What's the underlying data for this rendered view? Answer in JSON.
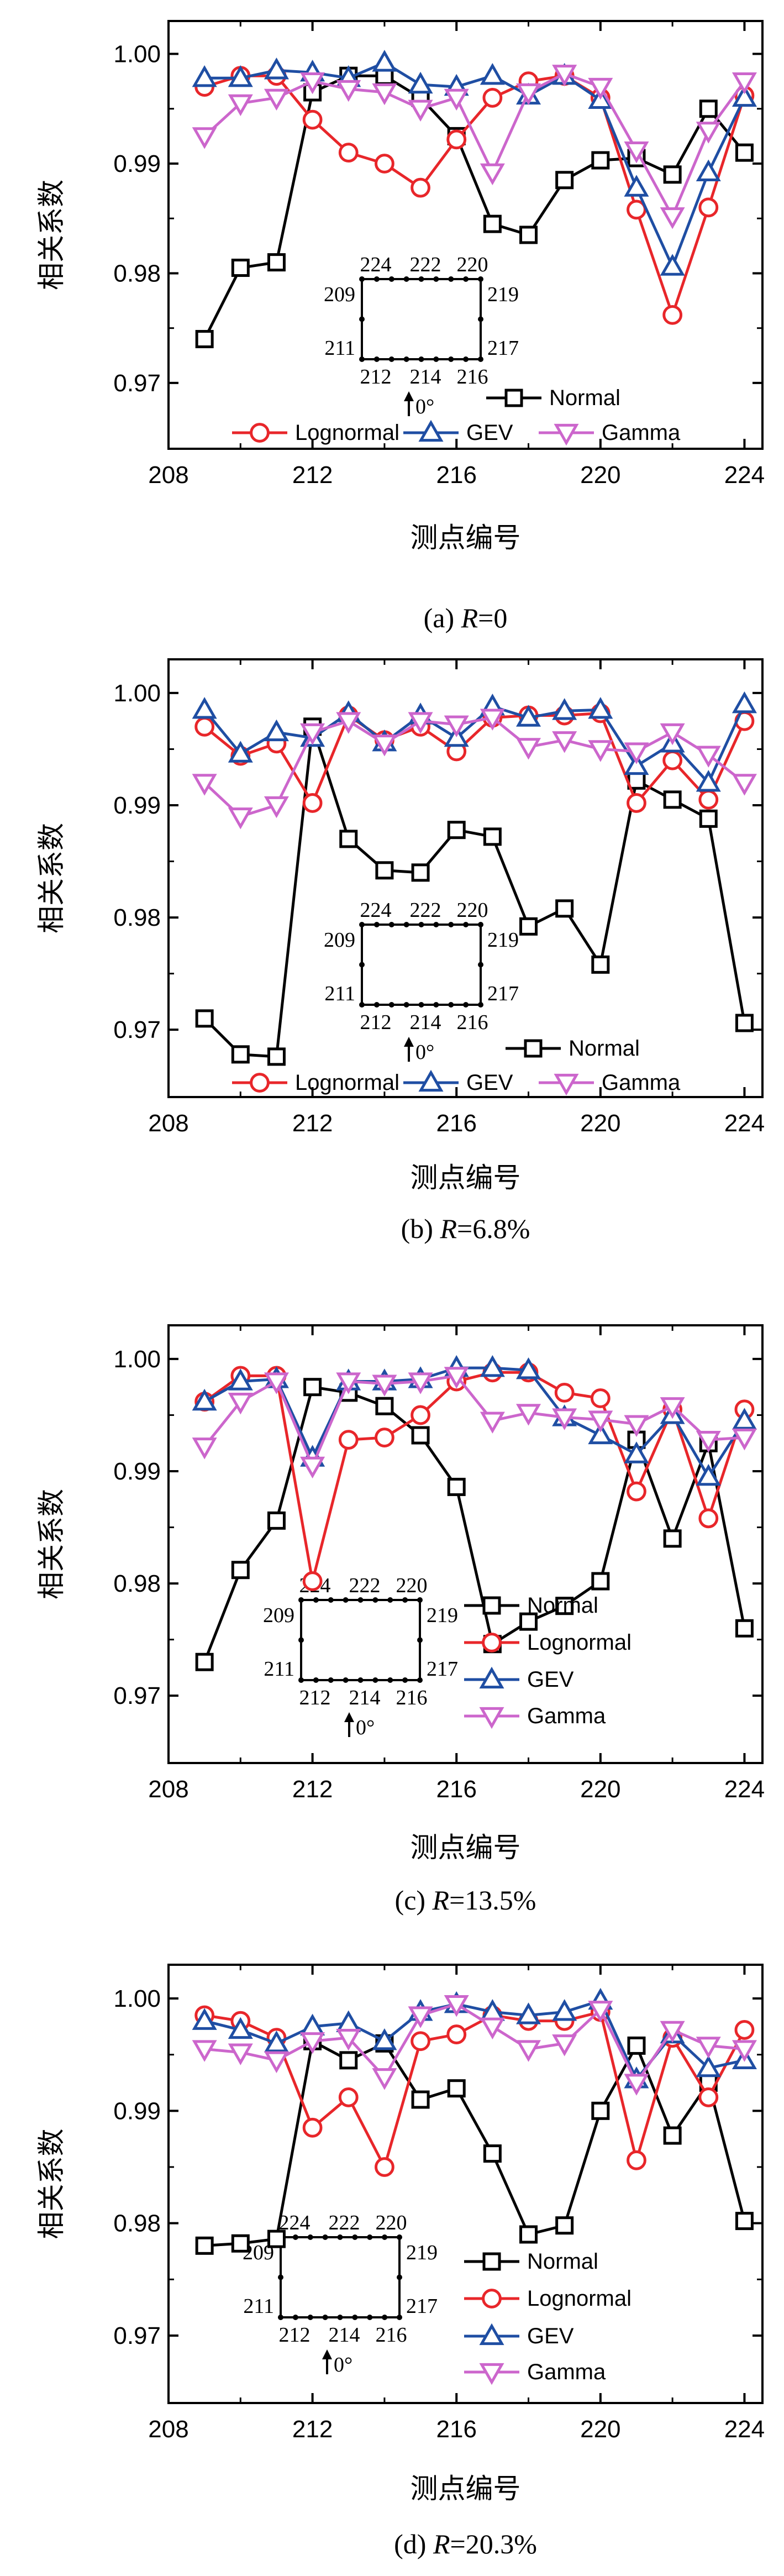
{
  "colors": {
    "Normal": "#000000",
    "Lognormal": "#e8262a",
    "GEV": "#1f4ea3",
    "Gamma": "#cc66cc"
  },
  "inset": {
    "top_labels": [
      "224",
      "222",
      "220"
    ],
    "left_top": "209",
    "left_bottom": "211",
    "right_top": "219",
    "right_bottom": "217",
    "bottom_labels": [
      "212",
      "214",
      "216"
    ],
    "angle": "0°"
  },
  "chart_data": [
    {
      "type": "line",
      "caption": "(a) R=0",
      "caption_prefix": "(a) ",
      "caption_var": "R",
      "caption_value": "=0",
      "xlabel": "测点编号",
      "ylabel": "相关系数",
      "xlim": [
        208,
        224.5
      ],
      "ylim": [
        0.964,
        1.003
      ],
      "x_ticks": [
        "208",
        "212",
        "216",
        "220",
        "224"
      ],
      "y_ticks": [
        "0.97",
        "0.98",
        "0.99",
        "1.00"
      ],
      "legend_layout": "two-row",
      "x": [
        209,
        210,
        211,
        212,
        213,
        214,
        215,
        216,
        217,
        218,
        219,
        220,
        221,
        222,
        223,
        224
      ],
      "series": [
        {
          "name": "Normal",
          "marker": "square",
          "values": [
            0.974,
            0.9805,
            0.981,
            0.9965,
            0.998,
            0.998,
            0.996,
            0.9925,
            0.9845,
            0.9835,
            0.9885,
            0.9903,
            0.9905,
            0.989,
            0.995,
            0.991
          ]
        },
        {
          "name": "Lognormal",
          "marker": "circle",
          "values": [
            0.997,
            0.998,
            0.998,
            0.994,
            0.991,
            0.99,
            0.9878,
            0.9922,
            0.996,
            0.9975,
            0.998,
            0.996,
            0.9858,
            0.9762,
            0.986,
            0.9962
          ]
        },
        {
          "name": "GEV",
          "marker": "triangle-up",
          "values": [
            0.9978,
            0.9978,
            0.9985,
            0.9983,
            0.9978,
            0.9992,
            0.9972,
            0.997,
            0.998,
            0.9962,
            0.998,
            0.9958,
            0.9878,
            0.9806,
            0.9892,
            0.996
          ]
        },
        {
          "name": "Gamma",
          "marker": "triangle-down",
          "values": [
            0.9925,
            0.9955,
            0.996,
            0.9975,
            0.9968,
            0.9965,
            0.995,
            0.996,
            0.9892,
            0.9965,
            0.9982,
            0.997,
            0.9912,
            0.9852,
            0.993,
            0.9975
          ]
        }
      ]
    },
    {
      "type": "line",
      "caption": "(b) R=6.8%",
      "caption_prefix": "(b) ",
      "caption_var": "R",
      "caption_value": "=6.8%",
      "xlabel": "测点编号",
      "ylabel": "相关系数",
      "xlim": [
        208,
        224.5
      ],
      "ylim": [
        0.964,
        1.003
      ],
      "x_ticks": [
        "208",
        "212",
        "216",
        "220",
        "224"
      ],
      "y_ticks": [
        "0.97",
        "0.98",
        "0.99",
        "1.00"
      ],
      "legend_layout": "two-row",
      "x": [
        209,
        210,
        211,
        212,
        213,
        214,
        215,
        216,
        217,
        218,
        219,
        220,
        221,
        222,
        223,
        224
      ],
      "series": [
        {
          "name": "Normal",
          "marker": "square",
          "values": [
            0.971,
            0.9678,
            0.9676,
            0.997,
            0.987,
            0.9842,
            0.984,
            0.9878,
            0.9872,
            0.9792,
            0.9808,
            0.9758,
            0.9922,
            0.9905,
            0.9888,
            0.9706
          ]
        },
        {
          "name": "Lognormal",
          "marker": "circle",
          "values": [
            0.997,
            0.9944,
            0.9955,
            0.9902,
            0.998,
            0.9958,
            0.997,
            0.9948,
            0.9978,
            0.998,
            0.998,
            0.9982,
            0.9902,
            0.994,
            0.9905,
            0.9975
          ]
        },
        {
          "name": "GEV",
          "marker": "triangle-up",
          "values": [
            0.9985,
            0.9946,
            0.9965,
            0.996,
            0.9982,
            0.9956,
            0.998,
            0.996,
            0.9988,
            0.9978,
            0.9984,
            0.9985,
            0.9935,
            0.9955,
            0.992,
            0.999
          ]
        },
        {
          "name": "Gamma",
          "marker": "triangle-down",
          "values": [
            0.992,
            0.989,
            0.99,
            0.9965,
            0.9975,
            0.9955,
            0.9975,
            0.9972,
            0.9978,
            0.9952,
            0.9958,
            0.995,
            0.9948,
            0.9965,
            0.9945,
            0.992
          ]
        }
      ]
    },
    {
      "type": "line",
      "caption": "(c) R=13.5%",
      "caption_prefix": "(c) ",
      "caption_var": "R",
      "caption_value": "=13.5%",
      "xlabel": "测点编号",
      "ylabel": "相关系数",
      "xlim": [
        208,
        224.5
      ],
      "ylim": [
        0.964,
        1.003
      ],
      "x_ticks": [
        "208",
        "212",
        "216",
        "220",
        "224"
      ],
      "y_ticks": [
        "0.97",
        "0.98",
        "0.99",
        "1.00"
      ],
      "legend_layout": "vertical",
      "x": [
        209,
        210,
        211,
        212,
        213,
        214,
        215,
        216,
        217,
        218,
        219,
        220,
        221,
        222,
        223,
        224
      ],
      "series": [
        {
          "name": "Normal",
          "marker": "square",
          "values": [
            0.973,
            0.9812,
            0.9856,
            0.9975,
            0.997,
            0.9958,
            0.9932,
            0.9886,
            0.9746,
            0.9766,
            0.978,
            0.9802,
            0.9928,
            0.984,
            0.9925,
            0.976
          ]
        },
        {
          "name": "Lognormal",
          "marker": "circle",
          "values": [
            0.9962,
            0.9985,
            0.9985,
            0.9802,
            0.9928,
            0.993,
            0.995,
            0.998,
            0.9988,
            0.9988,
            0.997,
            0.9965,
            0.9882,
            0.9955,
            0.9858,
            0.9955
          ]
        },
        {
          "name": "GEV",
          "marker": "triangle-up",
          "values": [
            0.9962,
            0.998,
            0.9982,
            0.9912,
            0.998,
            0.998,
            0.9982,
            0.9992,
            0.9992,
            0.999,
            0.9948,
            0.9932,
            0.9915,
            0.995,
            0.9895,
            0.9945
          ]
        },
        {
          "name": "Gamma",
          "marker": "triangle-down",
          "values": [
            0.9922,
            0.9962,
            0.998,
            0.9905,
            0.998,
            0.9978,
            0.998,
            0.9985,
            0.9945,
            0.9952,
            0.9948,
            0.9946,
            0.9942,
            0.9958,
            0.9928,
            0.993
          ]
        }
      ]
    },
    {
      "type": "line",
      "caption": "(d) R=20.3%",
      "caption_prefix": "(d) ",
      "caption_var": "R",
      "caption_value": "=20.3%",
      "xlabel": "测点编号",
      "ylabel": "相关系数",
      "xlim": [
        208,
        224.5
      ],
      "ylim": [
        0.964,
        1.003
      ],
      "x_ticks": [
        "208",
        "212",
        "216",
        "220",
        "224"
      ],
      "y_ticks": [
        "0.97",
        "0.98",
        "0.99",
        "1.00"
      ],
      "legend_layout": "vertical",
      "x": [
        209,
        210,
        211,
        212,
        213,
        214,
        215,
        216,
        217,
        218,
        219,
        220,
        221,
        222,
        223,
        224
      ],
      "series": [
        {
          "name": "Normal",
          "marker": "square",
          "values": [
            0.978,
            0.9782,
            0.9786,
            0.9962,
            0.9945,
            0.996,
            0.991,
            0.992,
            0.9862,
            0.979,
            0.9798,
            0.99,
            0.9958,
            0.9878,
            0.9925,
            0.9802
          ]
        },
        {
          "name": "Lognormal",
          "marker": "circle",
          "values": [
            0.9985,
            0.998,
            0.9965,
            0.9885,
            0.9912,
            0.985,
            0.9962,
            0.9968,
            0.9985,
            0.998,
            0.998,
            0.9988,
            0.9856,
            0.9965,
            0.9912,
            0.9972
          ]
        },
        {
          "name": "GEV",
          "marker": "triangle-up",
          "values": [
            0.998,
            0.9972,
            0.996,
            0.9975,
            0.9978,
            0.9962,
            0.9988,
            0.9995,
            0.9988,
            0.9985,
            0.9988,
            0.9998,
            0.9928,
            0.9968,
            0.9938,
            0.9945
          ]
        },
        {
          "name": "Gamma",
          "marker": "triangle-down",
          "values": [
            0.9955,
            0.9952,
            0.9945,
            0.9962,
            0.9965,
            0.993,
            0.9985,
            0.9995,
            0.9975,
            0.9955,
            0.996,
            0.999,
            0.9925,
            0.9972,
            0.9958,
            0.9955
          ]
        }
      ]
    }
  ]
}
